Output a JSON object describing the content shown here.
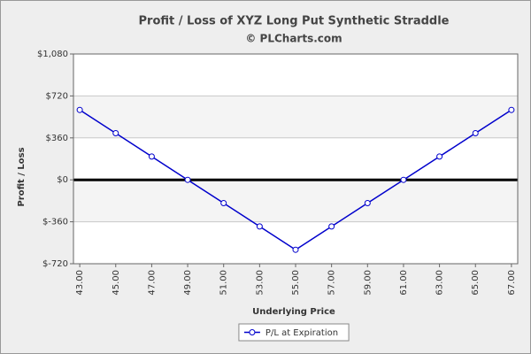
{
  "chart_data": {
    "type": "line",
    "title": "Profit / Loss of XYZ Long Put Synthetic Straddle",
    "subtitle": "© PLCharts.com",
    "x_label": "Underlying Price",
    "y_label": "Profit / Loss",
    "x": [
      43,
      45,
      47,
      49,
      51,
      53,
      55,
      57,
      59,
      61,
      63,
      65,
      67
    ],
    "series": [
      {
        "name": "P/L at Expiration",
        "color": "#0000cc",
        "values": [
          600,
          400,
          200,
          0,
          -200,
          -400,
          -600,
          -400,
          -200,
          0,
          200,
          400,
          600
        ]
      }
    ],
    "xlim": [
      42.65,
      67.35
    ],
    "xticks": [
      {
        "value": 43,
        "label": "43.00"
      },
      {
        "value": 45,
        "label": "45.00"
      },
      {
        "value": 47,
        "label": "47.00"
      },
      {
        "value": 49,
        "label": "49.00"
      },
      {
        "value": 51,
        "label": "51.00"
      },
      {
        "value": 53,
        "label": "53.00"
      },
      {
        "value": 55,
        "label": "55.00"
      },
      {
        "value": 57,
        "label": "57.00"
      },
      {
        "value": 59,
        "label": "59.00"
      },
      {
        "value": 61,
        "label": "61.00"
      },
      {
        "value": 63,
        "label": "63.00"
      },
      {
        "value": 65,
        "label": "65.00"
      },
      {
        "value": 67,
        "label": "67.00"
      }
    ],
    "ylim": [
      -720,
      1080
    ],
    "yticks": [
      {
        "value": -720,
        "label": "$-720"
      },
      {
        "value": -360,
        "label": "$-360"
      },
      {
        "value": 0,
        "label": "$0"
      },
      {
        "value": 360,
        "label": "$360"
      },
      {
        "value": 720,
        "label": "$720"
      },
      {
        "value": 1080,
        "label": "$1,080"
      }
    ],
    "grid": true,
    "zero_line": true,
    "legend": "bottom"
  }
}
